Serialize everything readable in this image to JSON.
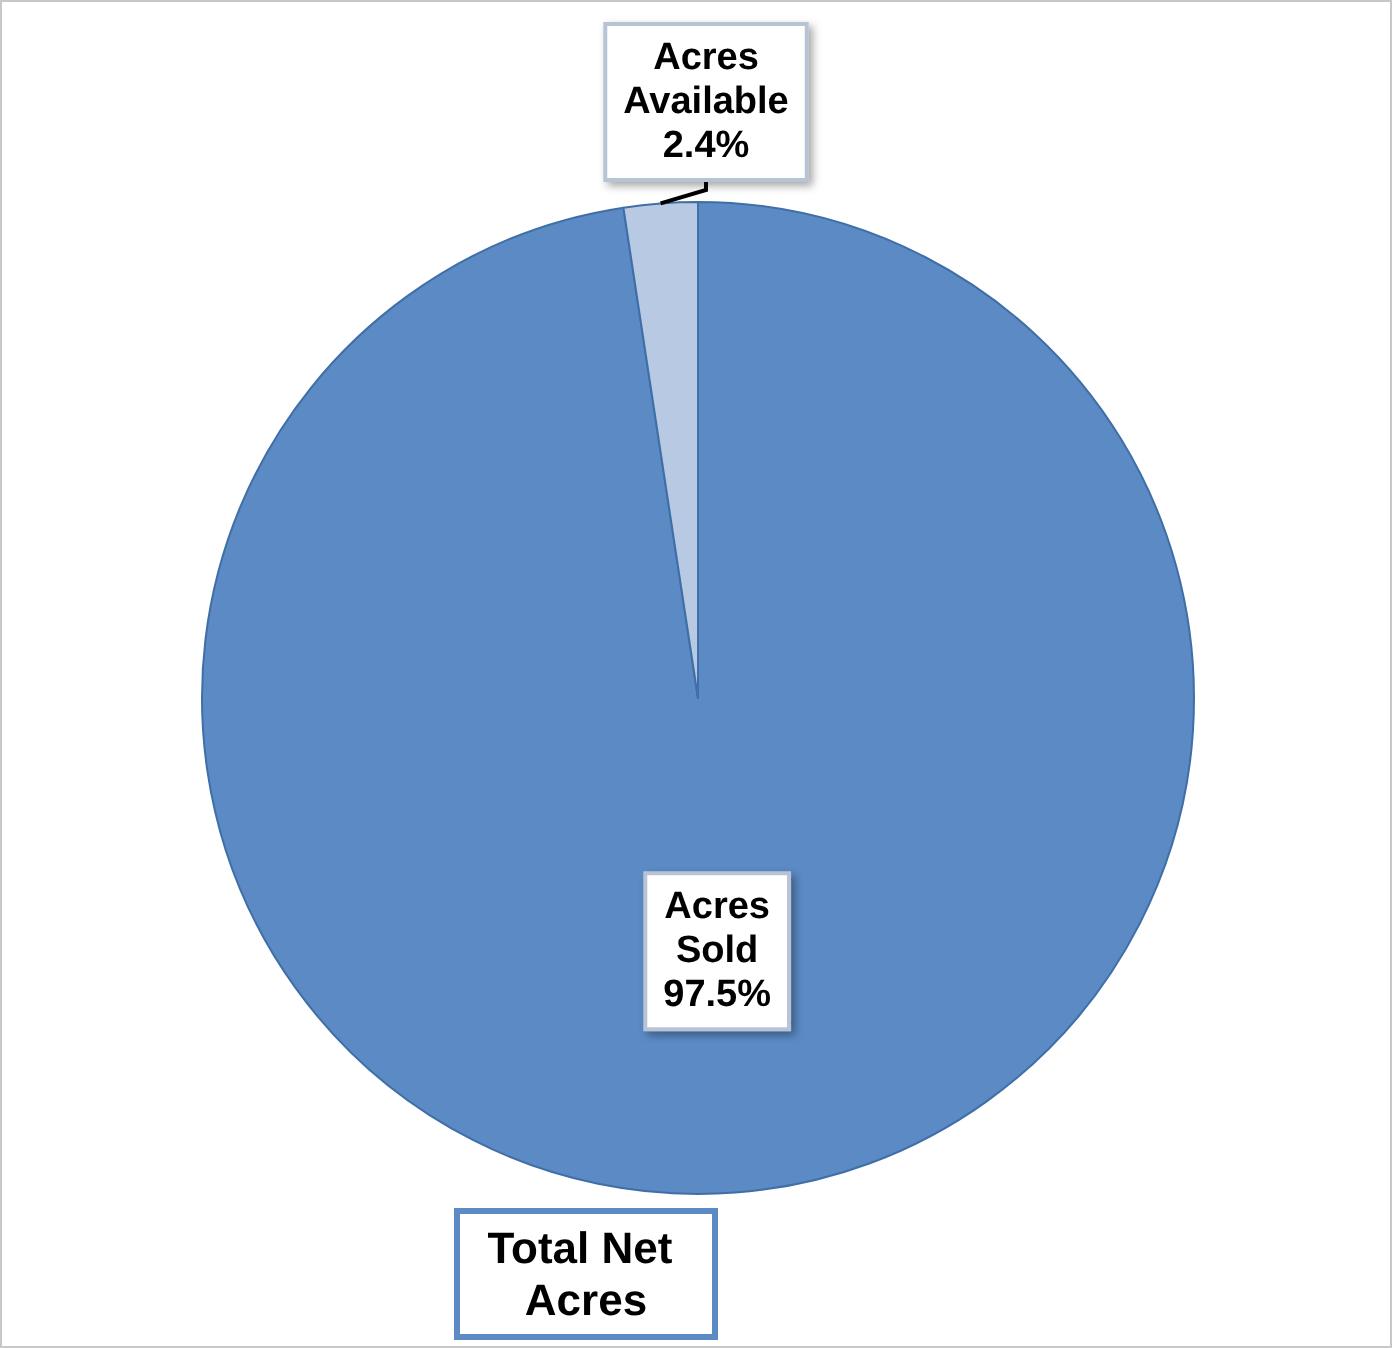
{
  "chart_data": {
    "type": "pie",
    "title": "Total Net Acres",
    "categories": [
      "Acres Sold",
      "Acres Available"
    ],
    "values": [
      97.5,
      2.4
    ],
    "colors": [
      "#5b8ac5",
      "#b8c9e3"
    ],
    "value_labels": [
      "97.5%",
      "2.4%"
    ],
    "legend": false
  }
}
